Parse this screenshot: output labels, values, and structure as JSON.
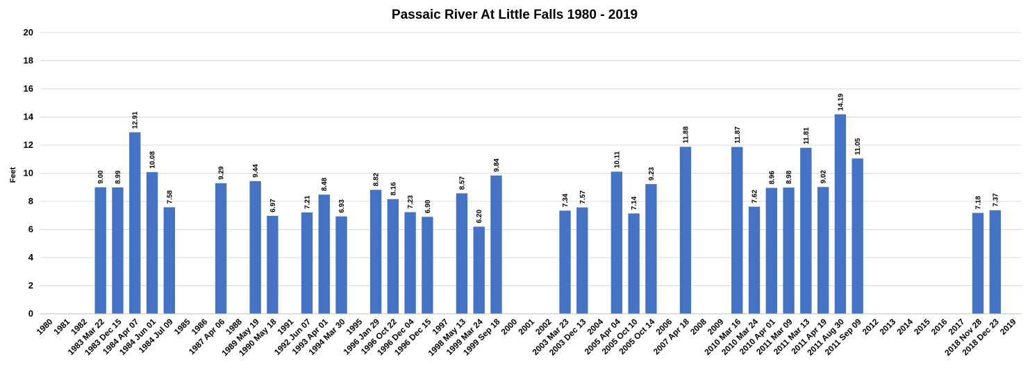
{
  "chart_data": {
    "type": "bar",
    "title": "Passaic River At Little Falls 1980 - 2019",
    "xlabel": "",
    "ylabel": "Feet",
    "ylim": [
      0,
      20
    ],
    "yticks": [
      "0",
      "2",
      "4",
      "6",
      "8",
      "10",
      "12",
      "14",
      "16",
      "18",
      "20"
    ],
    "grid": true,
    "bar_color": "#4472c4",
    "categories": [
      "1980",
      "1981",
      "1982",
      "1983 Mar 22",
      "1983 Dec 15",
      "1984 Apr 07",
      "1984 Jun 01",
      "1984 Jul 09",
      "1985",
      "1986",
      "1987 Apr 06",
      "1988",
      "1989 May 19",
      "1990 May 18",
      "1991",
      "1992 Jun 07",
      "1993 Apr 01",
      "1994 Mar 30",
      "1995",
      "1996 Jan 29",
      "1996 Oct 22",
      "1996 Dec 04",
      "1996 Dec 15",
      "1997",
      "1998 May 13",
      "1999 Mar 24",
      "1999 Sep 18",
      "2000",
      "2001",
      "2002",
      "2003 Mar 23",
      "2003 Dec 13",
      "2004",
      "2005 Apr 04",
      "2005 Oct 10",
      "2005 Oct 14",
      "2006",
      "2007 Apr 18",
      "2008",
      "2009",
      "2010 Mar 16",
      "2010 Mar 24",
      "2010 Apr 01",
      "2011 Mar 09",
      "2011 Mar 13",
      "2011 Apr 19",
      "2011 Aug 30",
      "2011 Sep 09",
      "2012",
      "2013",
      "2014",
      "2015",
      "2016",
      "2017",
      "2018 Nov 28",
      "2018 Dec 23",
      "2019"
    ],
    "values": [
      null,
      null,
      null,
      9.0,
      8.99,
      12.91,
      10.08,
      7.58,
      null,
      null,
      9.29,
      null,
      9.44,
      6.97,
      null,
      7.21,
      8.48,
      6.93,
      null,
      8.82,
      8.16,
      7.23,
      6.9,
      null,
      8.57,
      6.2,
      9.84,
      null,
      null,
      null,
      7.34,
      7.57,
      null,
      10.11,
      7.14,
      9.23,
      null,
      11.88,
      null,
      null,
      11.87,
      7.62,
      8.96,
      8.98,
      11.81,
      9.02,
      14.19,
      11.05,
      null,
      null,
      null,
      null,
      null,
      null,
      7.18,
      7.37,
      null
    ],
    "data_labels": [
      "",
      "",
      "",
      "9.00",
      "8.99",
      "12.91",
      "10.08",
      "7.58",
      "",
      "",
      "9.29",
      "",
      "9.44",
      "6.97",
      "",
      "7.21",
      "8.48",
      "6.93",
      "",
      "8.82",
      "8.16",
      "7.23",
      "6.90",
      "",
      "8.57",
      "6.20",
      "9.84",
      "",
      "",
      "",
      "7.34",
      "7.57",
      "",
      "10.11",
      "7.14",
      "9.23",
      "",
      "11.88",
      "",
      "",
      "11.87",
      "7.62",
      "8.96",
      "8.98",
      "11.81",
      "9.02",
      "14.19",
      "11.05",
      "",
      "",
      "",
      "",
      "",
      "",
      "7.18",
      "7.37",
      ""
    ]
  }
}
